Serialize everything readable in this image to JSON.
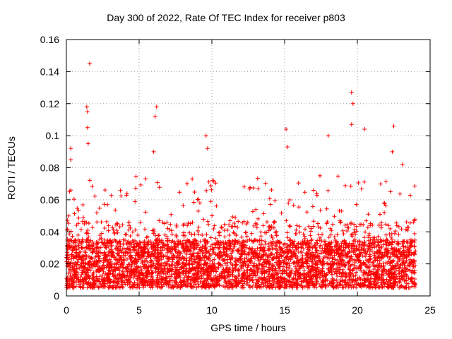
{
  "chart_data": {
    "type": "scatter",
    "title": "Day 300 of 2022, Rate Of TEC Index for receiver p803",
    "xlabel": "GPS time / hours",
    "ylabel": "ROTI / TECUs",
    "xlim": [
      0,
      25
    ],
    "ylim": [
      0,
      0.16
    ],
    "xticks": [
      "0",
      "5",
      "10",
      "15",
      "20",
      "25"
    ],
    "yticks": [
      "0",
      "0.02",
      "0.04",
      "0.06",
      "0.08",
      "0.1",
      "0.12",
      "0.14",
      "0.16"
    ],
    "grid": true,
    "marker": "+",
    "color": "#ff0000",
    "data_span_hours": [
      0,
      24
    ],
    "typical_range": [
      0.005,
      0.035
    ],
    "notable_points": [
      {
        "x": 0.3,
        "y": 0.092
      },
      {
        "x": 0.3,
        "y": 0.085
      },
      {
        "x": 0.3,
        "y": 0.066
      },
      {
        "x": 1.4,
        "y": 0.118
      },
      {
        "x": 1.45,
        "y": 0.115
      },
      {
        "x": 1.45,
        "y": 0.105
      },
      {
        "x": 1.5,
        "y": 0.095
      },
      {
        "x": 1.6,
        "y": 0.145
      },
      {
        "x": 6.2,
        "y": 0.118
      },
      {
        "x": 6.1,
        "y": 0.112
      },
      {
        "x": 6.0,
        "y": 0.09
      },
      {
        "x": 9.6,
        "y": 0.1
      },
      {
        "x": 9.7,
        "y": 0.092
      },
      {
        "x": 15.1,
        "y": 0.104
      },
      {
        "x": 15.2,
        "y": 0.093
      },
      {
        "x": 18.0,
        "y": 0.1
      },
      {
        "x": 19.6,
        "y": 0.127
      },
      {
        "x": 19.7,
        "y": 0.12
      },
      {
        "x": 19.6,
        "y": 0.107
      },
      {
        "x": 20.5,
        "y": 0.104
      },
      {
        "x": 22.5,
        "y": 0.106
      },
      {
        "x": 22.4,
        "y": 0.09
      },
      {
        "x": 23.1,
        "y": 0.082
      }
    ]
  }
}
